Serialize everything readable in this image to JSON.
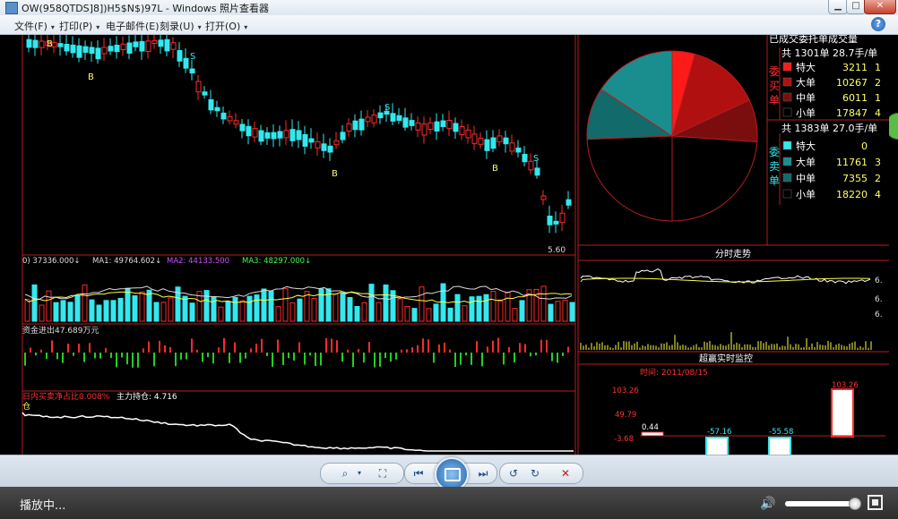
{
  "window": {
    "title": "OW(958QTDS]8])H5$N$)97L - Windows 照片查看器",
    "controls": {
      "minimize": "▁",
      "maximize": "□",
      "close": "✕"
    }
  },
  "menubar": {
    "items": [
      {
        "label": "文件(F)",
        "arrow": "▾"
      },
      {
        "label": "打印(P)",
        "arrow": "▾"
      },
      {
        "label": "电子邮件(E)",
        "arrow": ""
      },
      {
        "label": "刻录(U)",
        "arrow": "▾"
      },
      {
        "label": "打开(O)",
        "arrow": "▾"
      }
    ],
    "help": "?"
  },
  "stock_screen": {
    "kline_markers": [
      "B",
      "B",
      "S",
      "S",
      "B",
      "B",
      "S"
    ],
    "price_low_label": "5.60",
    "volume_legend": [
      {
        "text": "0) 37336.000↓",
        "color": "#dddddd"
      },
      {
        "text": "MA1: 49764.602↓",
        "color": "#dddddd"
      },
      {
        "text": "MA2: 44133.500",
        "color": "#d050ff"
      },
      {
        "text": "MA3: 48297.000↓",
        "color": "#40ff40"
      }
    ],
    "fund_flow_label": "资金进出47.689万元",
    "hold_label": "日内买卖净占比0.008%",
    "hold_value_label": "主力持仓: 4.716",
    "hold_short_label": "仓",
    "order_panel": {
      "header": "已成交委托单成交量",
      "buy_title": "共 1301单 28.7手/单",
      "buy_side_label": [
        "委",
        "买",
        "单"
      ],
      "buy_rows": [
        {
          "label": "特大",
          "value": "3211",
          "extra": "1",
          "color": "#ff1a1a"
        },
        {
          "label": "大单",
          "value": "10267",
          "extra": "2",
          "color": "#b01010"
        },
        {
          "label": "中单",
          "value": "6011",
          "extra": "1",
          "color": "#7a0e0e"
        },
        {
          "label": "小单",
          "value": "17847",
          "extra": "4",
          "color": "#000000"
        }
      ],
      "sell_title": "共 1383单 27.0手/单",
      "sell_side_label": [
        "委",
        "卖",
        "单"
      ],
      "sell_rows": [
        {
          "label": "特大",
          "value": "0",
          "extra": "",
          "color": "#33e8ee"
        },
        {
          "label": "大单",
          "value": "11761",
          "extra": "3",
          "color": "#1a8e8e"
        },
        {
          "label": "中单",
          "value": "7355",
          "extra": "2",
          "color": "#136a6a"
        },
        {
          "label": "小单",
          "value": "18220",
          "extra": "4",
          "color": "#000000"
        }
      ]
    },
    "intraday": {
      "title": "分时走势",
      "right_ticks": [
        "6.",
        "6.",
        "6."
      ]
    },
    "monitor": {
      "title": "超赢实时监控",
      "time_label": "时间: 2011/08/15",
      "y_ticks": [
        "103.26",
        "49.79",
        "-3.68"
      ],
      "bar_labels": [
        "0.44",
        "-57.16",
        "-55.58",
        "103.26"
      ]
    }
  },
  "toolbar": {
    "buttons": [
      "zoom",
      "fit",
      "previous",
      "slideshow",
      "next",
      "rotate-left",
      "rotate-right",
      "delete"
    ]
  },
  "status": {
    "text": "播放中...",
    "volume_fraction": 0.92
  }
}
